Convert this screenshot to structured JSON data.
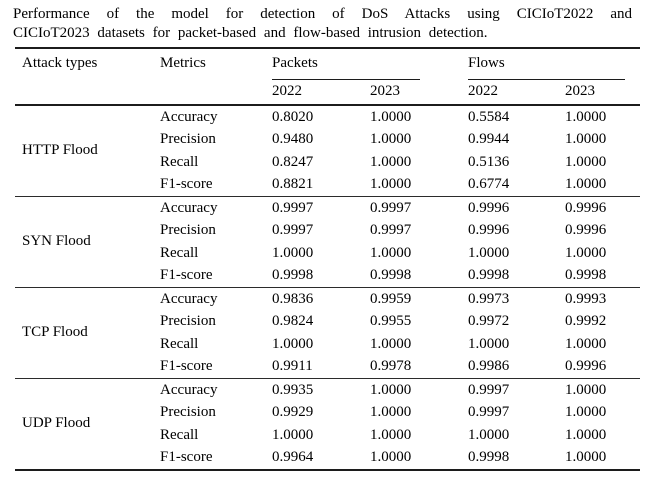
{
  "page": {
    "background": "#ffffff",
    "text_color": "#000000",
    "rule_color": "#1c1c1c"
  },
  "caption": {
    "line1": "Performance of the model for detection of DoS Attacks using CICIoT2022 and",
    "line2": "CICIoT2023 datasets for packet-based and flow-based intrusion detection."
  },
  "table": {
    "headers": {
      "attack_types": "Attack types",
      "metrics": "Metrics",
      "packets": "Packets",
      "flows": "Flows"
    },
    "subheaders": {
      "packets_2022": "2022",
      "packets_2023": "2023",
      "flows_2022": "2022",
      "flows_2023": "2023"
    },
    "sections": [
      {
        "attack": "HTTP Flood",
        "rows": [
          {
            "metric": "Accuracy",
            "values": [
              "0.8020",
              "1.0000",
              "0.5584",
              "1.0000"
            ]
          },
          {
            "metric": "Precision",
            "values": [
              "0.9480",
              "1.0000",
              "0.9944",
              "1.0000"
            ]
          },
          {
            "metric": "Recall",
            "values": [
              "0.8247",
              "1.0000",
              "0.5136",
              "1.0000"
            ]
          },
          {
            "metric": "F1-score",
            "values": [
              "0.8821",
              "1.0000",
              "0.6774",
              "1.0000"
            ]
          }
        ]
      },
      {
        "attack": "SYN Flood",
        "rows": [
          {
            "metric": "Accuracy",
            "values": [
              "0.9997",
              "0.9997",
              "0.9996",
              "0.9996"
            ]
          },
          {
            "metric": "Precision",
            "values": [
              "0.9997",
              "0.9997",
              "0.9996",
              "0.9996"
            ]
          },
          {
            "metric": "Recall",
            "values": [
              "1.0000",
              "1.0000",
              "1.0000",
              "1.0000"
            ]
          },
          {
            "metric": "F1-score",
            "values": [
              "0.9998",
              "0.9998",
              "0.9998",
              "0.9998"
            ]
          }
        ]
      },
      {
        "attack": "TCP Flood",
        "rows": [
          {
            "metric": "Accuracy",
            "values": [
              "0.9836",
              "0.9959",
              "0.9973",
              "0.9993"
            ]
          },
          {
            "metric": "Precision",
            "values": [
              "0.9824",
              "0.9955",
              "0.9972",
              "0.9992"
            ]
          },
          {
            "metric": "Recall",
            "values": [
              "1.0000",
              "1.0000",
              "1.0000",
              "1.0000"
            ]
          },
          {
            "metric": "F1-score",
            "values": [
              "0.9911",
              "0.9978",
              "0.9986",
              "0.9996"
            ]
          }
        ]
      },
      {
        "attack": "UDP Flood",
        "rows": [
          {
            "metric": "Accuracy",
            "values": [
              "0.9935",
              "1.0000",
              "0.9997",
              "1.0000"
            ]
          },
          {
            "metric": "Precision",
            "values": [
              "0.9929",
              "1.0000",
              "0.9997",
              "1.0000"
            ]
          },
          {
            "metric": "Recall",
            "values": [
              "1.0000",
              "1.0000",
              "1.0000",
              "1.0000"
            ]
          },
          {
            "metric": "F1-score",
            "values": [
              "0.9964",
              "1.0000",
              "0.9998",
              "1.0000"
            ]
          }
        ]
      }
    ]
  }
}
